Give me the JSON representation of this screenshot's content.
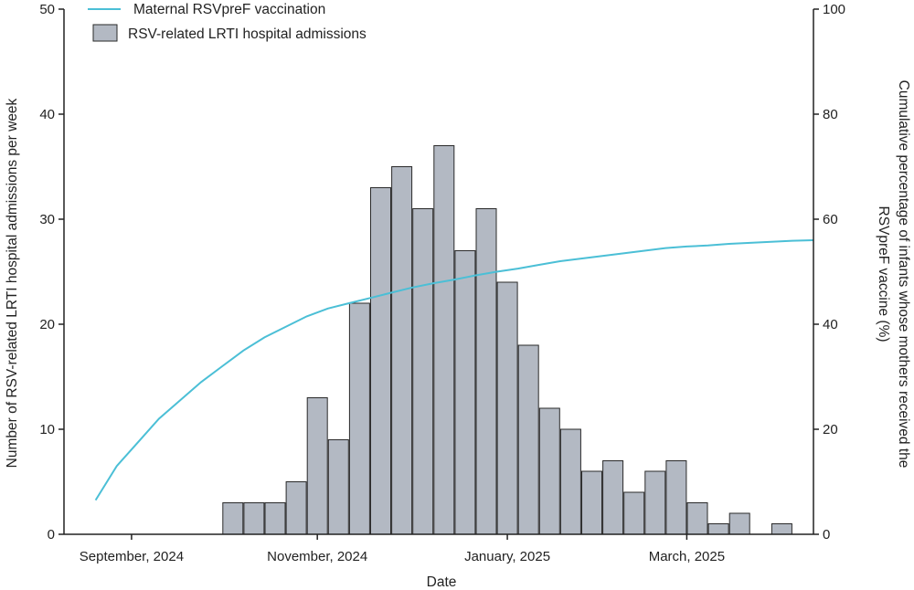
{
  "chart_data": {
    "type": "bar+line",
    "title": "",
    "xlabel": "Date",
    "ylabel_left": "Number of RSV-related LRTI hospital admissions per week",
    "ylabel_right_line1": "Cumulative percentage of infants whose mothers received the",
    "ylabel_right_line2": "RSVpreF vaccine (%)",
    "ylim_left": [
      0,
      50
    ],
    "ylim_right": [
      0,
      100
    ],
    "y_ticks_left": [
      "0",
      "10",
      "20",
      "30",
      "40",
      "50"
    ],
    "y_ticks_right": [
      "0",
      "20",
      "40",
      "60",
      "80",
      "100"
    ],
    "x_ticks": [
      {
        "label": "September, 2024",
        "week": 3.2
      },
      {
        "label": "November, 2024",
        "week": 12.0
      },
      {
        "label": "January, 2025",
        "week": 21.0
      },
      {
        "label": "March, 2025",
        "week": 29.5
      }
    ],
    "x_week_range": [
      0,
      35.5
    ],
    "legend": {
      "position": "top-left",
      "line_label": "Maternal RSVpreF vaccination",
      "bar_label": "RSV-related LRTI hospital admissions"
    },
    "series": [
      {
        "name": "RSV-related LRTI hospital admissions",
        "type": "bar",
        "color": "#b3b9c3",
        "edge_color": "#2a2a2a",
        "weeks": [
          8,
          9,
          10,
          11,
          12,
          13,
          14,
          15,
          16,
          17,
          18,
          19,
          20,
          21,
          22,
          23,
          24,
          25,
          26,
          27,
          28,
          29,
          30,
          31,
          32,
          34
        ],
        "values": [
          3,
          3,
          3,
          5,
          13,
          9,
          22,
          33,
          35,
          31,
          37,
          27,
          31,
          24,
          18,
          12,
          10,
          6,
          7,
          4,
          6,
          7,
          3,
          1,
          2,
          1
        ]
      },
      {
        "name": "Maternal RSVpreF vaccination",
        "type": "line",
        "color": "#4bbfd6",
        "x": [
          1.5,
          2.5,
          3.5,
          4.5,
          5.5,
          6.5,
          7.5,
          8.5,
          9.5,
          10.5,
          11.5,
          12.5,
          13.5,
          14.5,
          15.5,
          16.5,
          17.5,
          18.5,
          19.5,
          20.5,
          21.5,
          22.5,
          23.5,
          24.5,
          25.5,
          26.5,
          27.5,
          28.5,
          29.5,
          30.5,
          31.5,
          32.5,
          33.5,
          34.5,
          35.5
        ],
        "y": [
          6.5,
          13,
          17.5,
          22,
          25.5,
          29,
          32,
          35,
          37.5,
          39.5,
          41.5,
          43,
          44,
          45,
          46,
          47,
          47.8,
          48.5,
          49.3,
          50,
          50.6,
          51.3,
          52,
          52.5,
          53,
          53.5,
          54,
          54.5,
          54.8,
          55,
          55.3,
          55.5,
          55.7,
          55.9,
          56
        ]
      }
    ]
  }
}
